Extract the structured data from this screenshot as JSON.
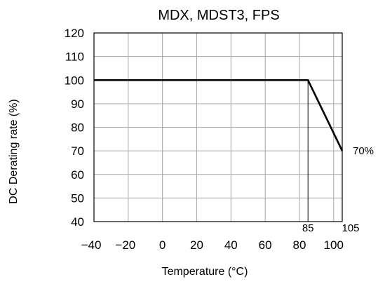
{
  "chart_data": {
    "type": "line",
    "title": "MDX, MDST3, FPS",
    "xlabel": "Temperature (°C)",
    "ylabel": "DC Derating rate (%)",
    "xlim": [
      -40,
      105
    ],
    "ylim": [
      40,
      120
    ],
    "x_ticks": [
      "-40",
      "-20",
      "0",
      "20",
      "40",
      "60",
      "80",
      "100"
    ],
    "y_ticks": [
      "40",
      "50",
      "60",
      "70",
      "80",
      "90",
      "100",
      "110",
      "120"
    ],
    "grid": true,
    "series": [
      {
        "x": [
          -40,
          85,
          105
        ],
        "y": [
          100,
          100,
          70
        ]
      }
    ],
    "annotations": [
      {
        "text": "85",
        "x": 85
      },
      {
        "text": "105",
        "x": 105
      },
      {
        "text": "70%",
        "y": 70
      }
    ]
  }
}
